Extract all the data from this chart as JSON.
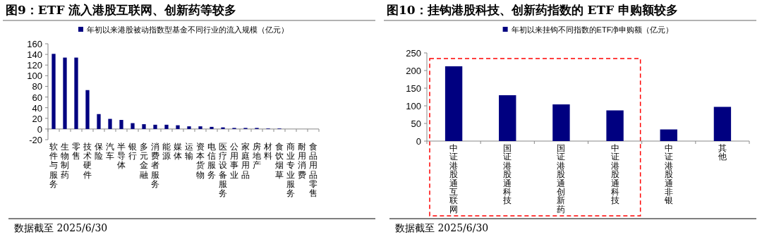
{
  "chart_data": [
    {
      "type": "bar",
      "title": "图9：ETF 流入港股互联网、创新药等较多",
      "categories": [
        "软件与服务",
        "生物制药",
        "零售",
        "技术硬件",
        "保险",
        "汽车",
        "半导体",
        "银行",
        "多元金融",
        "消费者服务",
        "能源",
        "媒体",
        "运输",
        "资本货物",
        "电信服务",
        "医疗设备服务",
        "公用事业",
        "家庭用品",
        "房地产",
        "材料",
        "食饮烟草",
        "商业专业服务",
        "耐用消费",
        "食品用品零售"
      ],
      "series": [
        {
          "name": "年初以来港股被动指数型基金不同行业的流入规模（亿元）",
          "color": "#000080",
          "values": [
            141,
            134,
            134,
            73,
            28,
            19,
            17,
            11,
            9,
            8,
            8,
            7,
            5,
            5,
            4,
            3,
            2,
            2,
            2,
            1,
            1,
            0,
            0,
            0
          ]
        }
      ],
      "ylim": [
        -20,
        160
      ],
      "yticks": [
        -20,
        0,
        20,
        40,
        60,
        80,
        100,
        120,
        140,
        160
      ],
      "legend": "top",
      "annotations": [
        "数据截至 2025/6/30"
      ]
    },
    {
      "type": "bar",
      "title": "图10：挂钩港股科技、创新药指数的 ETF 申购额较多",
      "categories": [
        "中证港股通互联网",
        "国证港股通科技",
        "国证港股通创新药",
        "中证港股通科技",
        "中证港股通非银",
        "其他"
      ],
      "series": [
        {
          "name": "年初以来挂钩不同指数的ETF净申购额（亿元）",
          "color": "#000080",
          "values": [
            212,
            130,
            104,
            87,
            33,
            97
          ]
        }
      ],
      "ylim": [
        0,
        250
      ],
      "yticks": [
        0,
        50,
        100,
        150,
        200,
        250
      ],
      "legend": "top",
      "annotations": [
        "数据截至 2025/6/30"
      ]
    }
  ]
}
